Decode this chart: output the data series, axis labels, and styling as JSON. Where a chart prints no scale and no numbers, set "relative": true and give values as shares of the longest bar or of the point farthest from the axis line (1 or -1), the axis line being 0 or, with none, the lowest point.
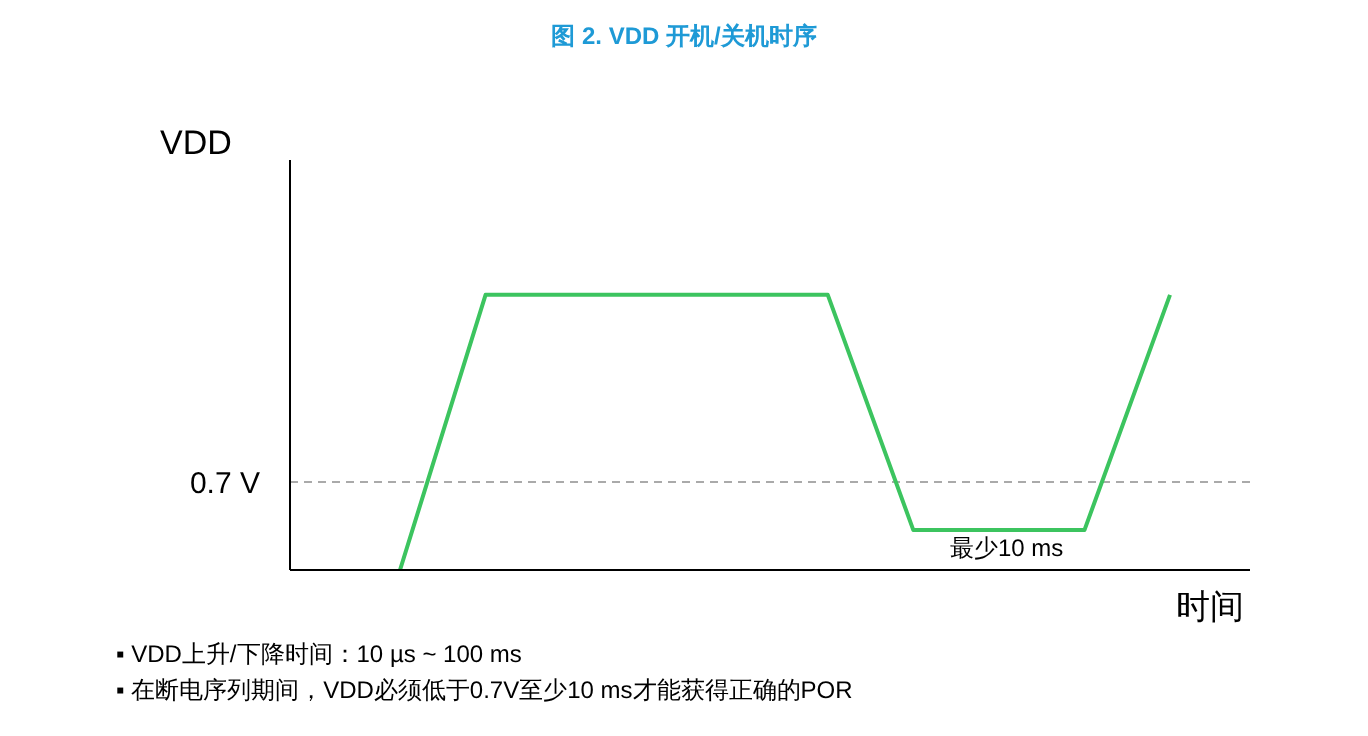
{
  "chart_data": {
    "type": "line",
    "title": "图 2. VDD 开机/关机时序",
    "ylabel": "VDD",
    "xlabel": "时间",
    "relative": true,
    "categories": [
      null,
      null,
      null,
      null,
      null,
      null,
      null,
      null,
      null,
      null
    ],
    "series": [
      {
        "color": "#3cc45f",
        "values": [
          0,
          1,
          1,
          1,
          1,
          1,
          0.145,
          0.145,
          0.145,
          1
        ]
      }
    ],
    "ref_lines": [
      {
        "axis": "y",
        "value": 0.32,
        "label": "0.7 V",
        "color": "#aaaaaa",
        "line_style": "dashed"
      }
    ],
    "annotations": [
      "最少10 ms",
      "▪ VDD上升/下降时间：10 µs ~ 100 ms",
      "▪ 在断电序列期间，VDD必须低于0.7V至少10 ms才能获得正确的POR"
    ],
    "grid": false,
    "legend": false,
    "marker": "none",
    "line_style": "solid"
  }
}
